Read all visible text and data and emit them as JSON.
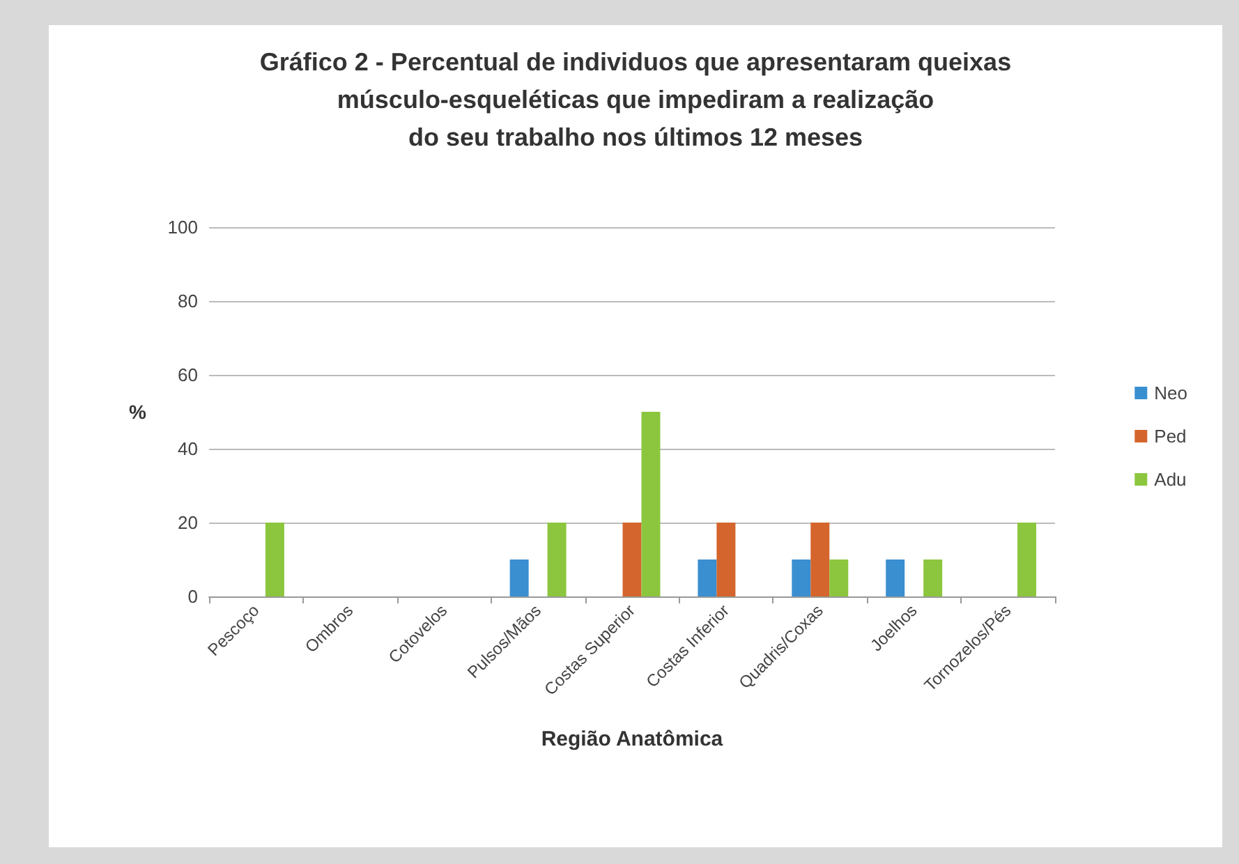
{
  "chart_data": {
    "type": "bar",
    "title": "Gráfico 2 - Percentual de individuos que apresentaram queixas\nmúsculo-esqueléticas que impediram a realização\ndo seu trabalho nos últimos 12 meses",
    "xlabel": "Região Anatômica",
    "ylabel": "%",
    "categories": [
      "Pescoço",
      "Ombros",
      "Cotovelos",
      "Pulsos/Mãos",
      "Costas Superior",
      "Costas Inferior",
      "Quadris/Coxas",
      "Joelhos",
      "Tornozelos/Pés"
    ],
    "series": [
      {
        "name": "Neo",
        "color": "#3a8fd0",
        "values": [
          0,
          0,
          0,
          10,
          0,
          10,
          10,
          10,
          0
        ]
      },
      {
        "name": "Ped",
        "color": "#d4652c",
        "values": [
          0,
          0,
          0,
          0,
          20,
          20,
          20,
          0,
          0
        ]
      },
      {
        "name": "Adu",
        "color": "#8cc63e",
        "values": [
          20,
          0,
          0,
          20,
          50,
          0,
          10,
          10,
          20
        ]
      }
    ],
    "ylim": [
      0,
      100
    ],
    "yticks": [
      0,
      20,
      40,
      60,
      80,
      100
    ],
    "grid": "y",
    "legend": "right"
  }
}
